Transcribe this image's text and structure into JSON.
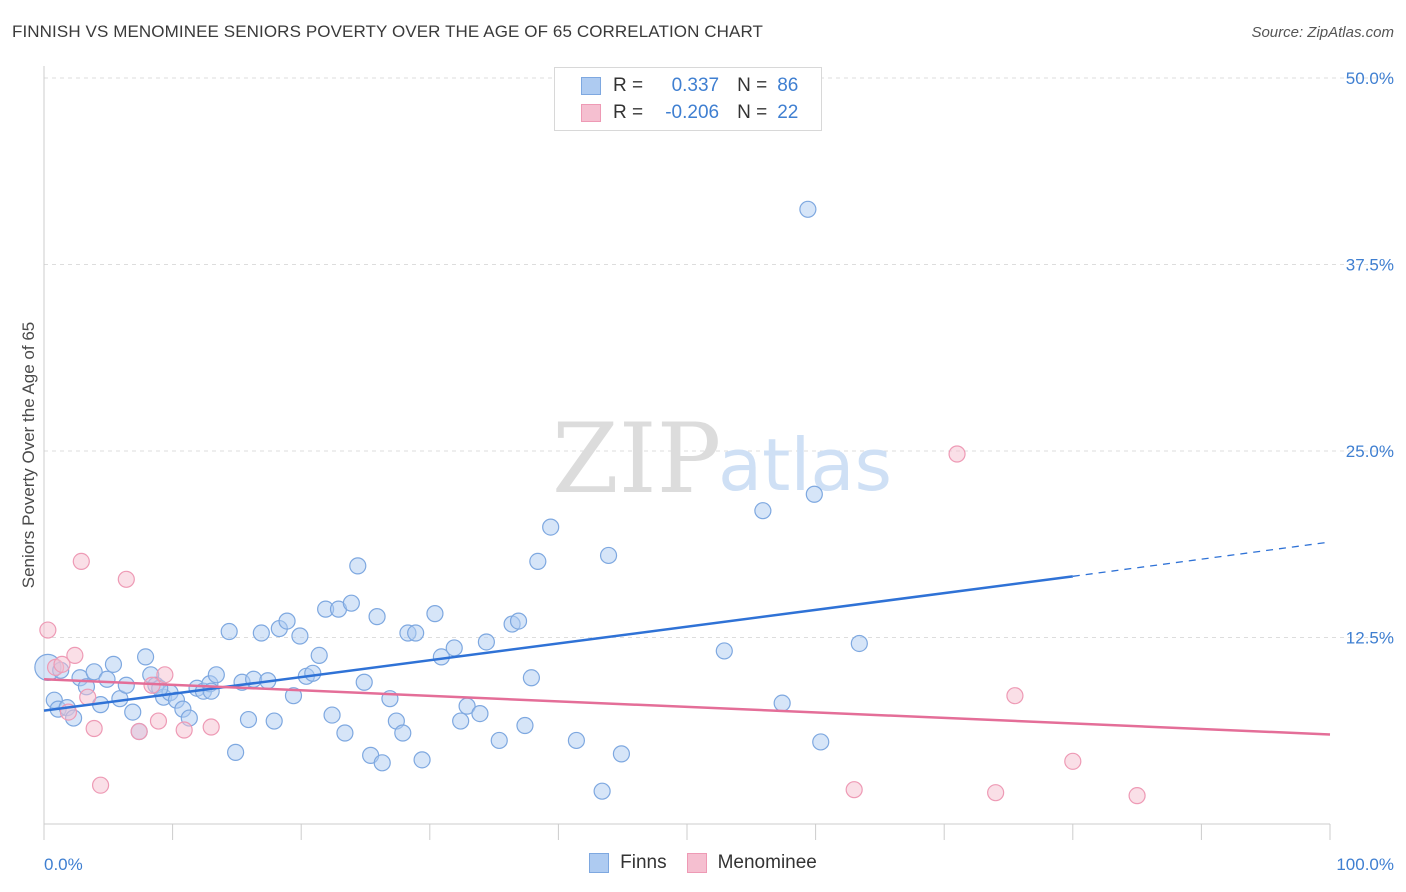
{
  "header": {
    "title": "FINNISH VS MENOMINEE SENIORS POVERTY OVER THE AGE OF 65 CORRELATION CHART",
    "source": "Source: ZipAtlas.com"
  },
  "watermark": {
    "zip": "ZIP",
    "atlas": "atlas"
  },
  "legend": {
    "r_label": "R =",
    "n_label": "N =",
    "rows": [
      {
        "r": "0.337",
        "n": "86"
      },
      {
        "r": "-0.206",
        "n": "22"
      }
    ]
  },
  "colors": {
    "finns_fill": "#aecbf1",
    "finns_stroke": "#7ea8e0",
    "finns_line": "#2f72d6",
    "menominee_fill": "#f5bfd0",
    "menominee_stroke": "#ee9ab5",
    "menominee_line": "#e46e98",
    "tick": "#3f7fd1",
    "grid": "#dddddd"
  },
  "chart_data": {
    "type": "scatter",
    "title": "FINNISH VS MENOMINEE SENIORS POVERTY OVER THE AGE OF 65 CORRELATION CHART",
    "ylabel": "Seniors Poverty Over the Age of 65",
    "xlim": [
      0,
      100
    ],
    "ylim": [
      0,
      50
    ],
    "x_tick_labels": [
      "0.0%",
      "100.0%"
    ],
    "y_ticks": [
      12.5,
      25,
      37.5,
      50
    ],
    "y_tick_labels": [
      "12.5%",
      "25.0%",
      "37.5%",
      "50.0%"
    ],
    "grid": true,
    "legend_position": "top-center",
    "series": [
      {
        "name": "Finns",
        "r": 0.337,
        "n": 86,
        "trend": {
          "x0": 0,
          "y0": 7.6,
          "x1": 80,
          "y1": 16.6,
          "dashed_to_x": 100,
          "dashed_to_y": 18.9
        },
        "points": [
          [
            0.3,
            10.5
          ],
          [
            0.8,
            8.3
          ],
          [
            1.1,
            7.7
          ],
          [
            1.8,
            7.8
          ],
          [
            2.3,
            7.1
          ],
          [
            2.8,
            9.8
          ],
          [
            3.3,
            9.2
          ],
          [
            3.9,
            10.2
          ],
          [
            4.4,
            8.0
          ],
          [
            4.9,
            9.7
          ],
          [
            5.4,
            10.7
          ],
          [
            5.9,
            8.4
          ],
          [
            6.4,
            9.3
          ],
          [
            6.9,
            7.5
          ],
          [
            7.4,
            6.2
          ],
          [
            7.9,
            11.2
          ],
          [
            8.3,
            10.0
          ],
          [
            8.7,
            9.3
          ],
          [
            9.3,
            8.5
          ],
          [
            9.8,
            8.8
          ],
          [
            10.3,
            8.3
          ],
          [
            10.8,
            7.7
          ],
          [
            11.3,
            7.1
          ],
          [
            11.9,
            9.1
          ],
          [
            12.4,
            8.9
          ],
          [
            12.9,
            9.4
          ],
          [
            13.4,
            10.0
          ],
          [
            14.4,
            12.9
          ],
          [
            14.9,
            4.8
          ],
          [
            15.4,
            9.5
          ],
          [
            15.9,
            7.0
          ],
          [
            16.3,
            9.7
          ],
          [
            16.9,
            12.8
          ],
          [
            17.4,
            9.6
          ],
          [
            17.9,
            6.9
          ],
          [
            18.3,
            13.1
          ],
          [
            18.9,
            13.6
          ],
          [
            19.4,
            8.6
          ],
          [
            19.9,
            12.6
          ],
          [
            20.4,
            9.9
          ],
          [
            20.9,
            10.1
          ],
          [
            21.4,
            11.3
          ],
          [
            21.9,
            14.4
          ],
          [
            22.4,
            7.3
          ],
          [
            22.9,
            14.4
          ],
          [
            23.4,
            6.1
          ],
          [
            23.9,
            14.8
          ],
          [
            24.4,
            17.3
          ],
          [
            24.9,
            9.5
          ],
          [
            25.4,
            4.6
          ],
          [
            25.9,
            13.9
          ],
          [
            26.3,
            4.1
          ],
          [
            26.9,
            8.4
          ],
          [
            27.4,
            6.9
          ],
          [
            27.9,
            6.1
          ],
          [
            28.3,
            12.8
          ],
          [
            28.9,
            12.8
          ],
          [
            29.4,
            4.3
          ],
          [
            30.4,
            14.1
          ],
          [
            30.9,
            11.2
          ],
          [
            31.9,
            11.8
          ],
          [
            32.4,
            6.9
          ],
          [
            32.9,
            7.9
          ],
          [
            33.9,
            7.4
          ],
          [
            34.4,
            12.2
          ],
          [
            35.4,
            5.6
          ],
          [
            36.4,
            13.4
          ],
          [
            36.9,
            13.6
          ],
          [
            37.4,
            6.6
          ],
          [
            37.9,
            9.8
          ],
          [
            38.4,
            17.6
          ],
          [
            39.4,
            19.9
          ],
          [
            41.4,
            5.6
          ],
          [
            43.4,
            2.2
          ],
          [
            43.9,
            18.0
          ],
          [
            44.9,
            4.7
          ],
          [
            52.9,
            11.6
          ],
          [
            55.9,
            21.0
          ],
          [
            57.4,
            8.1
          ],
          [
            59.4,
            41.2
          ],
          [
            59.9,
            22.1
          ],
          [
            60.4,
            5.5
          ],
          [
            63.4,
            12.1
          ],
          [
            1.3,
            10.3
          ],
          [
            9.0,
            9.1
          ],
          [
            13.0,
            8.9
          ]
        ]
      },
      {
        "name": "Menominee",
        "r": -0.206,
        "n": 22,
        "trend": {
          "x0": 0,
          "y0": 9.7,
          "x1": 100,
          "y1": 6.0
        },
        "points": [
          [
            0.3,
            13.0
          ],
          [
            0.9,
            10.5
          ],
          [
            1.4,
            10.7
          ],
          [
            1.9,
            7.5
          ],
          [
            2.4,
            11.3
          ],
          [
            2.9,
            17.6
          ],
          [
            3.4,
            8.5
          ],
          [
            3.9,
            6.4
          ],
          [
            4.4,
            2.6
          ],
          [
            6.4,
            16.4
          ],
          [
            7.4,
            6.2
          ],
          [
            8.4,
            9.3
          ],
          [
            8.9,
            6.9
          ],
          [
            9.4,
            10.0
          ],
          [
            10.9,
            6.3
          ],
          [
            13.0,
            6.5
          ],
          [
            63.0,
            2.3
          ],
          [
            71.0,
            24.8
          ],
          [
            74.0,
            2.1
          ],
          [
            75.5,
            8.6
          ],
          [
            80.0,
            4.2
          ],
          [
            85.0,
            1.9
          ]
        ]
      }
    ]
  }
}
